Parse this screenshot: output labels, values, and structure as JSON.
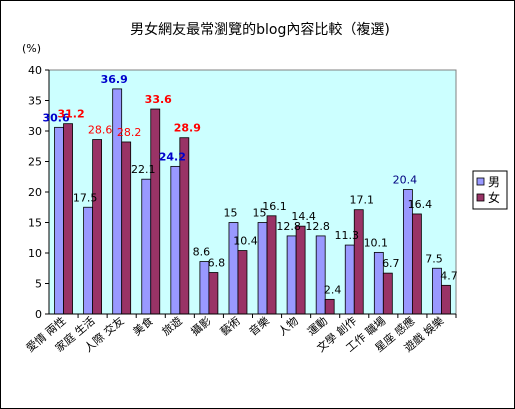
{
  "chart_data": {
    "type": "bar",
    "title": "男女網友最常瀏覽的blog內容比較（複選)",
    "ylabel": "(%)",
    "ylim": [
      0,
      40
    ],
    "ytick_step": 5,
    "grid": false,
    "legend_position": "right",
    "categories": [
      "愛情 兩性",
      "家庭 生活",
      "人際 交友",
      "美食",
      "旅遊",
      "攝影",
      "藝術",
      "音樂",
      "人物",
      "運動",
      "文學 創作",
      "工作 職場",
      "星座 感應",
      "遊戲 娛樂"
    ],
    "series": [
      {
        "name": "男",
        "color": "#9999ff",
        "values": [
          30.6,
          17.5,
          36.9,
          22.1,
          24.2,
          8.6,
          15,
          15,
          12.8,
          12.8,
          11.3,
          10.1,
          20.4,
          7.5
        ]
      },
      {
        "name": "女",
        "color": "#993366",
        "values": [
          31.2,
          28.6,
          28.2,
          33.6,
          28.9,
          6.8,
          10.4,
          16.1,
          14.4,
          2.4,
          17.1,
          6.7,
          16.4,
          4.7
        ]
      }
    ],
    "value_labels": {
      "男": [
        "30.6",
        "17.5",
        "36.9",
        "22.1",
        "24.2",
        "8.6",
        "15",
        "15",
        "12.8",
        "12.8",
        "11.3",
        "10.1",
        "20.4",
        "7.5"
      ],
      "女": [
        "31.2",
        "28.6",
        "28.2",
        "33.6",
        "28.9",
        "6.8",
        "10.4",
        "16.1",
        "14.4",
        "2.4",
        "17.1",
        "6.7",
        "16.4",
        "4.7"
      ]
    },
    "label_colors": {
      "男": [
        "#0000cc",
        "#000000",
        "#0000cc",
        "#000000",
        "#0000cc",
        "#000000",
        "#000000",
        "#000000",
        "#000000",
        "#000000",
        "#000000",
        "#000000",
        "#000080",
        "#000000"
      ],
      "女": [
        "#ff0000",
        "#ff0000",
        "#ff0000",
        "#ff0000",
        "#ff0000",
        "#000000",
        "#000000",
        "#000000",
        "#000000",
        "#000000",
        "#000000",
        "#000000",
        "#000000",
        "#000000"
      ]
    },
    "label_bold": {
      "男": [
        true,
        false,
        true,
        false,
        true,
        false,
        false,
        false,
        false,
        false,
        false,
        false,
        false,
        false
      ],
      "女": [
        true,
        false,
        false,
        true,
        true,
        false,
        false,
        false,
        false,
        false,
        false,
        false,
        false,
        false
      ]
    },
    "plot_background": "#ccffff"
  }
}
